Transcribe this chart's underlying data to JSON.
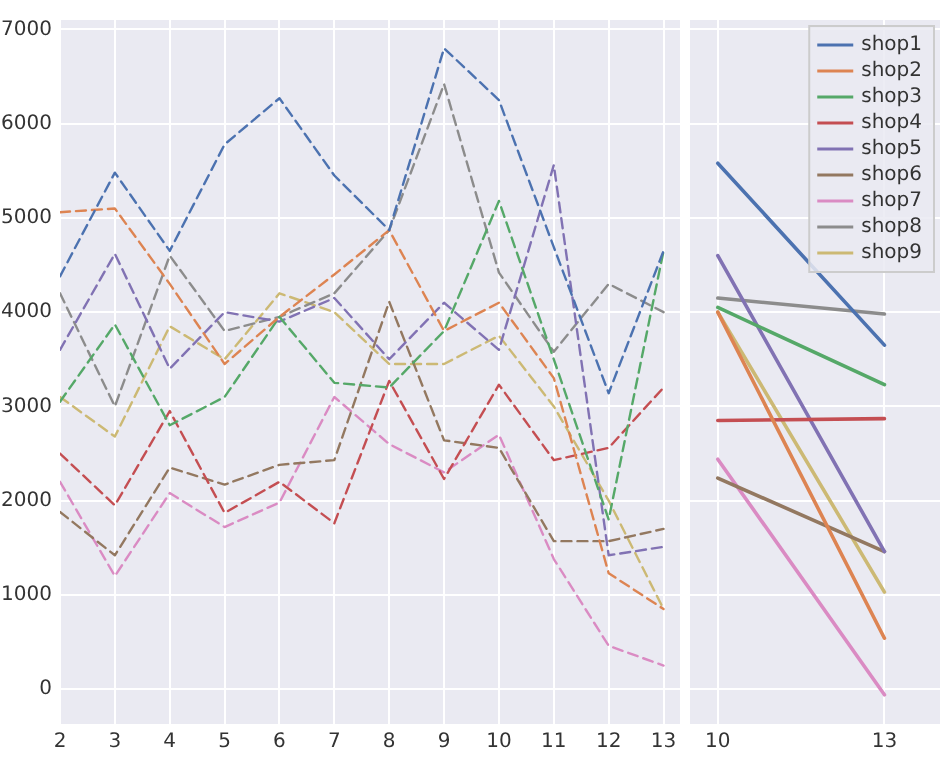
{
  "chart_data": [
    {
      "type": "line",
      "line_style": "dashed",
      "marker": "none",
      "grid": true,
      "legend": false,
      "x": [
        2,
        3,
        4,
        5,
        6,
        7,
        8,
        9,
        10,
        11,
        12,
        13
      ],
      "xlim": [
        2,
        13.3
      ],
      "xticks": [
        2,
        3,
        4,
        5,
        6,
        7,
        8,
        9,
        10,
        11,
        12,
        13
      ],
      "ylim": [
        -370,
        7100
      ],
      "yticks": [
        0,
        1000,
        2000,
        3000,
        4000,
        5000,
        6000,
        7000
      ],
      "series": [
        {
          "color": "#4c72b0",
          "values": [
            4380,
            5480,
            4650,
            5780,
            6270,
            5450,
            4870,
            6800,
            6250,
            4690,
            3140,
            4650
          ]
        },
        {
          "color": "#dd8452",
          "values": [
            5060,
            5100,
            4300,
            3450,
            3950,
            4400,
            4870,
            3800,
            4100,
            3300,
            1230,
            850
          ]
        },
        {
          "color": "#55a868",
          "values": [
            3050,
            3870,
            2800,
            3100,
            3950,
            3250,
            3200,
            3800,
            5180,
            3500,
            1800,
            4650
          ]
        },
        {
          "color": "#c44e52",
          "values": [
            2500,
            1950,
            2950,
            1870,
            2200,
            1760,
            3270,
            2230,
            3230,
            2430,
            2560,
            3200
          ]
        },
        {
          "color": "#8172b3",
          "values": [
            3600,
            4620,
            3400,
            4000,
            3900,
            4150,
            3500,
            4100,
            3600,
            5560,
            1420,
            1510
          ]
        },
        {
          "color": "#937860",
          "values": [
            1880,
            1420,
            2350,
            2170,
            2380,
            2430,
            4110,
            2640,
            2560,
            1570,
            1570,
            1700
          ]
        },
        {
          "color": "#da8bc3",
          "values": [
            2200,
            1200,
            2080,
            1720,
            1980,
            3100,
            2600,
            2300,
            2700,
            1380,
            460,
            250
          ]
        },
        {
          "color": "#8c8c8c",
          "values": [
            4200,
            3000,
            4600,
            3800,
            3950,
            4200,
            4870,
            6420,
            4420,
            3580,
            4300,
            4000
          ]
        },
        {
          "color": "#ccb974",
          "values": [
            3100,
            2680,
            3850,
            3500,
            4200,
            4000,
            3450,
            3450,
            3750,
            3000,
            2000,
            850
          ]
        }
      ]
    },
    {
      "type": "line",
      "line_style": "solid",
      "marker": "none",
      "grid": true,
      "legend": "top right",
      "tick_labels": "x",
      "x": [
        10,
        13
      ],
      "xlim": [
        9.5,
        14
      ],
      "xticks": [
        10,
        13
      ],
      "ylim": [
        -370,
        7100
      ],
      "yticks": [
        0,
        1000,
        2000,
        3000,
        4000,
        5000,
        6000,
        7000
      ],
      "series": [
        {
          "name": "shop1",
          "color": "#4c72b0",
          "values": [
            5580,
            3650
          ]
        },
        {
          "name": "shop2",
          "color": "#dd8452",
          "values": [
            4000,
            540
          ]
        },
        {
          "name": "shop3",
          "color": "#55a868",
          "values": [
            4050,
            3230
          ]
        },
        {
          "name": "shop4",
          "color": "#c44e52",
          "values": [
            2850,
            2870
          ]
        },
        {
          "name": "shop5",
          "color": "#8172b3",
          "values": [
            4600,
            1460
          ]
        },
        {
          "name": "shop6",
          "color": "#937860",
          "values": [
            2240,
            1460
          ]
        },
        {
          "name": "shop7",
          "color": "#da8bc3",
          "values": [
            2440,
            -60
          ]
        },
        {
          "name": "shop8",
          "color": "#8c8c8c",
          "values": [
            4150,
            3980
          ]
        },
        {
          "name": "shop9",
          "color": "#ccb974",
          "values": [
            4000,
            1030
          ]
        }
      ]
    }
  ]
}
